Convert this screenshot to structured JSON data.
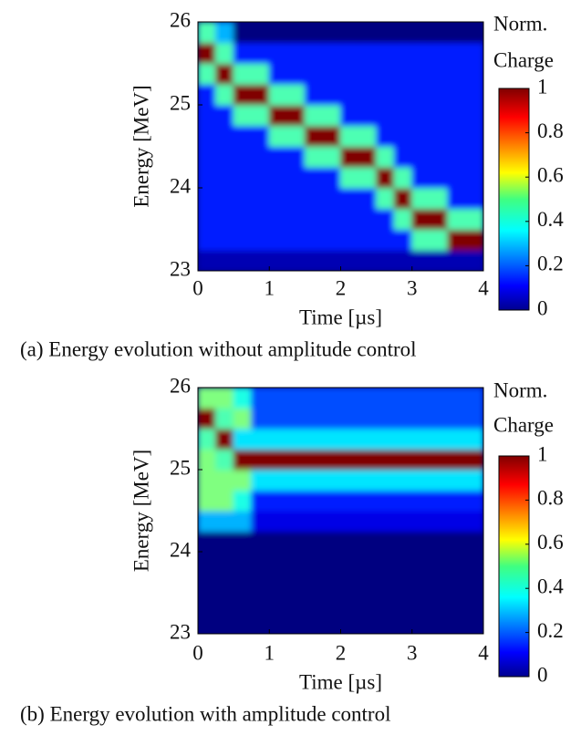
{
  "chart_data": [
    {
      "type": "heatmap",
      "caption": "(a) Energy evolution without amplitude control",
      "xlabel": "Time [µs]",
      "ylabel": "Energy [MeV]",
      "colorbar_label": [
        "Norm.",
        "Charge"
      ],
      "xlim": [
        0,
        4
      ],
      "xticks": [
        0,
        1,
        2,
        3,
        4
      ],
      "ylim": [
        23,
        26
      ],
      "yticks": [
        23,
        24,
        25,
        26
      ],
      "zlim": [
        0,
        1
      ],
      "zticks": [
        0,
        0.2,
        0.4,
        0.6,
        0.8,
        1
      ],
      "colormap": "jet",
      "xbins": [
        0,
        0.25,
        0.5,
        0.75,
        1,
        1.25,
        1.5,
        1.75,
        2,
        2.25,
        2.5,
        2.75,
        3,
        3.25,
        3.5,
        3.75,
        4
      ],
      "ybins": [
        23,
        23.25,
        23.5,
        23.75,
        24,
        24.25,
        24.5,
        24.75,
        25,
        25.25,
        25.5,
        25.75,
        26
      ],
      "z": [
        [
          0.05,
          0.05,
          0.05,
          0.05,
          0.05,
          0.05,
          0.05,
          0.05,
          0.05,
          0.05,
          0.05,
          0.05,
          0.05,
          0.05,
          0.05,
          0.05
        ],
        [
          0.15,
          0.15,
          0.15,
          0.15,
          0.15,
          0.15,
          0.15,
          0.15,
          0.15,
          0.15,
          0.15,
          0.15,
          0.45,
          0.45,
          1,
          1
        ],
        [
          0.15,
          0.15,
          0.15,
          0.15,
          0.15,
          0.15,
          0.15,
          0.15,
          0.15,
          0.15,
          0.15,
          0.45,
          1,
          1,
          0.45,
          0.45
        ],
        [
          0.15,
          0.15,
          0.15,
          0.15,
          0.15,
          0.15,
          0.15,
          0.15,
          0.15,
          0.15,
          0.45,
          1,
          0.45,
          0.45,
          0.15,
          0.15
        ],
        [
          0.15,
          0.15,
          0.15,
          0.15,
          0.15,
          0.15,
          0.15,
          0.15,
          0.45,
          0.45,
          1,
          0.45,
          0.15,
          0.15,
          0.15,
          0.15
        ],
        [
          0.15,
          0.15,
          0.15,
          0.15,
          0.15,
          0.15,
          0.45,
          0.45,
          1,
          1,
          0.45,
          0.15,
          0.15,
          0.15,
          0.15,
          0.15
        ],
        [
          0.15,
          0.15,
          0.15,
          0.15,
          0.45,
          0.45,
          1,
          1,
          0.45,
          0.45,
          0.15,
          0.15,
          0.15,
          0.15,
          0.15,
          0.15
        ],
        [
          0.15,
          0.15,
          0.45,
          0.45,
          1,
          1,
          0.45,
          0.45,
          0.15,
          0.15,
          0.15,
          0.15,
          0.15,
          0.15,
          0.15,
          0.15
        ],
        [
          0.15,
          0.45,
          1,
          1,
          0.45,
          0.45,
          0.15,
          0.15,
          0.15,
          0.15,
          0.15,
          0.15,
          0.15,
          0.15,
          0.15,
          0.15
        ],
        [
          0.45,
          1,
          0.45,
          0.45,
          0.15,
          0.15,
          0.15,
          0.15,
          0.15,
          0.15,
          0.15,
          0.15,
          0.15,
          0.15,
          0.15,
          0.15
        ],
        [
          1,
          0.45,
          0.15,
          0.15,
          0.15,
          0.15,
          0.15,
          0.15,
          0.15,
          0.15,
          0.15,
          0.15,
          0.15,
          0.15,
          0.15,
          0.15
        ],
        [
          0.45,
          0.3,
          0,
          0,
          0,
          0,
          0,
          0,
          0,
          0,
          0,
          0,
          0,
          0,
          0,
          0
        ]
      ]
    },
    {
      "type": "heatmap",
      "caption": "(b) Energy evolution with amplitude control",
      "xlabel": "Time [µs]",
      "ylabel": "Energy [MeV]",
      "colorbar_label": [
        "Norm.",
        "Charge"
      ],
      "xlim": [
        0,
        4
      ],
      "xticks": [
        0,
        1,
        2,
        3,
        4
      ],
      "ylim": [
        23,
        26
      ],
      "yticks": [
        23,
        24,
        25,
        26
      ],
      "zlim": [
        0,
        1
      ],
      "zticks": [
        0,
        0.2,
        0.4,
        0.6,
        0.8,
        1
      ],
      "colormap": "jet",
      "xbins": [
        0,
        0.25,
        0.5,
        0.75,
        1,
        1.25,
        1.5,
        1.75,
        2,
        2.25,
        2.5,
        2.75,
        3,
        3.25,
        3.5,
        3.75,
        4
      ],
      "ybins": [
        23,
        23.25,
        23.5,
        23.75,
        24,
        24.25,
        24.5,
        24.75,
        25,
        25.25,
        25.5,
        25.75,
        26
      ],
      "z": [
        [
          0,
          0,
          0,
          0,
          0,
          0,
          0,
          0,
          0,
          0,
          0,
          0,
          0,
          0,
          0,
          0
        ],
        [
          0,
          0,
          0,
          0,
          0,
          0,
          0,
          0,
          0,
          0,
          0,
          0,
          0,
          0,
          0,
          0
        ],
        [
          0,
          0,
          0,
          0,
          0,
          0,
          0,
          0,
          0,
          0,
          0,
          0,
          0,
          0,
          0,
          0
        ],
        [
          0,
          0,
          0,
          0,
          0,
          0,
          0,
          0,
          0,
          0,
          0,
          0,
          0,
          0,
          0,
          0
        ],
        [
          0,
          0,
          0,
          0,
          0,
          0,
          0,
          0,
          0,
          0,
          0,
          0,
          0,
          0,
          0,
          0
        ],
        [
          0.3,
          0.3,
          0.3,
          0.1,
          0.1,
          0.1,
          0.1,
          0.1,
          0.1,
          0.1,
          0.1,
          0.1,
          0.1,
          0.1,
          0.1,
          0.1
        ],
        [
          0.5,
          0.5,
          0.4,
          0.15,
          0.15,
          0.15,
          0.15,
          0.15,
          0.15,
          0.15,
          0.15,
          0.15,
          0.15,
          0.15,
          0.15,
          0.15
        ],
        [
          0.5,
          0.5,
          0.5,
          0.35,
          0.35,
          0.35,
          0.35,
          0.35,
          0.35,
          0.35,
          0.35,
          0.35,
          0.35,
          0.35,
          0.35,
          0.35
        ],
        [
          0.5,
          0.45,
          1,
          1,
          1,
          1,
          1,
          1,
          1,
          1,
          1,
          1,
          1,
          1,
          1,
          1
        ],
        [
          0.45,
          1,
          0.35,
          0.35,
          0.35,
          0.35,
          0.35,
          0.35,
          0.35,
          0.35,
          0.35,
          0.35,
          0.35,
          0.35,
          0.35,
          0.35
        ],
        [
          1,
          0.45,
          0.5,
          0.2,
          0.2,
          0.2,
          0.2,
          0.2,
          0.2,
          0.2,
          0.2,
          0.2,
          0.2,
          0.2,
          0.2,
          0.2
        ],
        [
          0.5,
          0.5,
          0.4,
          0.2,
          0.2,
          0.2,
          0.2,
          0.2,
          0.2,
          0.2,
          0.2,
          0.2,
          0.2,
          0.2,
          0.2,
          0.2
        ]
      ]
    }
  ]
}
